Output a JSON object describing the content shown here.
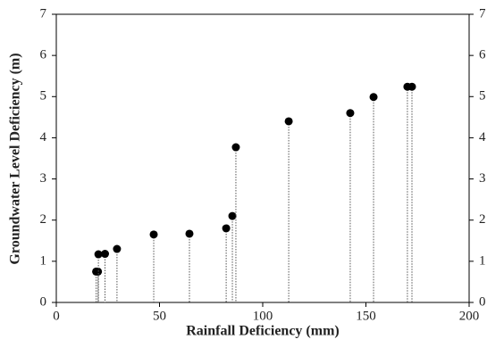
{
  "chart_data": {
    "type": "scatter",
    "x_label": "Rainfall Deficiency (mm)",
    "y_label": "Groundwater Level Deficiency (m)",
    "x": [
      19.3,
      20.2,
      20.4,
      23.6,
      29.4,
      47.2,
      64.5,
      82.3,
      85.3,
      87.0,
      112.6,
      142.4,
      153.7,
      170.1,
      172.3
    ],
    "values": [
      0.75,
      0.75,
      1.17,
      1.18,
      1.3,
      1.65,
      1.67,
      1.8,
      2.1,
      3.77,
      4.4,
      4.6,
      4.99,
      5.24,
      5.24
    ],
    "color": "#000000",
    "drop_lines": true,
    "xlim": [
      0,
      200
    ],
    "xticks": [
      0,
      50,
      100,
      150,
      200
    ],
    "ylim": [
      0,
      7
    ],
    "yticks": [
      0,
      1,
      2,
      3,
      4,
      5,
      6,
      7
    ],
    "y2lim": [
      0,
      7
    ],
    "y2ticks": [
      0,
      1,
      2,
      3,
      4,
      5,
      6,
      7
    ]
  }
}
